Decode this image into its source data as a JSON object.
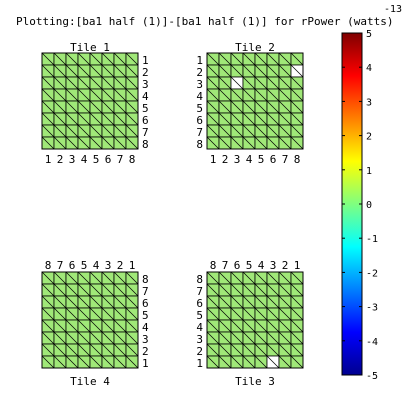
{
  "chart_data": {
    "type": "heatmap",
    "title": "Plotting:[ba1 half (1)]-[ba1 half (1)] for rPower (watts)",
    "colorbar": {
      "exponent_label": "-13",
      "range": [
        -5,
        5
      ],
      "tick_labels": [
        "5",
        "4",
        "3",
        "2",
        "1",
        "0",
        "-1",
        "-2",
        "-3",
        "-4",
        "-5"
      ]
    },
    "colors": {
      "cell": "#a0e878",
      "missing": "#ffffff",
      "grid": "#000000"
    },
    "value_at_all_cells": 0,
    "tiles": [
      {
        "name": "Tile 1",
        "title_position": "top",
        "row_labels": [
          "1",
          "2",
          "3",
          "4",
          "5",
          "6",
          "7",
          "8"
        ],
        "row_labels_side": "right",
        "col_labels": [
          "1",
          "2",
          "3",
          "4",
          "5",
          "6",
          "7",
          "8"
        ],
        "col_labels_side": "bottom",
        "missing_cells": []
      },
      {
        "name": "Tile 2",
        "title_position": "top",
        "row_labels": [
          "1",
          "2",
          "3",
          "4",
          "5",
          "6",
          "7",
          "8"
        ],
        "row_labels_side": "left",
        "col_labels": [
          "1",
          "2",
          "3",
          "4",
          "5",
          "6",
          "7",
          "8"
        ],
        "col_labels_side": "bottom",
        "missing_cells": [
          [
            2,
            8
          ],
          [
            3,
            3
          ]
        ]
      },
      {
        "name": "Tile 4",
        "title_position": "bottom",
        "row_labels": [
          "8",
          "7",
          "6",
          "5",
          "4",
          "3",
          "2",
          "1"
        ],
        "row_labels_side": "right",
        "col_labels": [
          "8",
          "7",
          "6",
          "5",
          "4",
          "3",
          "2",
          "1"
        ],
        "col_labels_side": "top",
        "missing_cells": []
      },
      {
        "name": "Tile 3",
        "title_position": "bottom",
        "row_labels": [
          "8",
          "7",
          "6",
          "5",
          "4",
          "3",
          "2",
          "1"
        ],
        "row_labels_side": "left",
        "col_labels": [
          "8",
          "7",
          "6",
          "5",
          "4",
          "3",
          "2",
          "1"
        ],
        "col_labels_side": "top",
        "missing_cells": [
          [
            8,
            6
          ]
        ]
      }
    ]
  }
}
